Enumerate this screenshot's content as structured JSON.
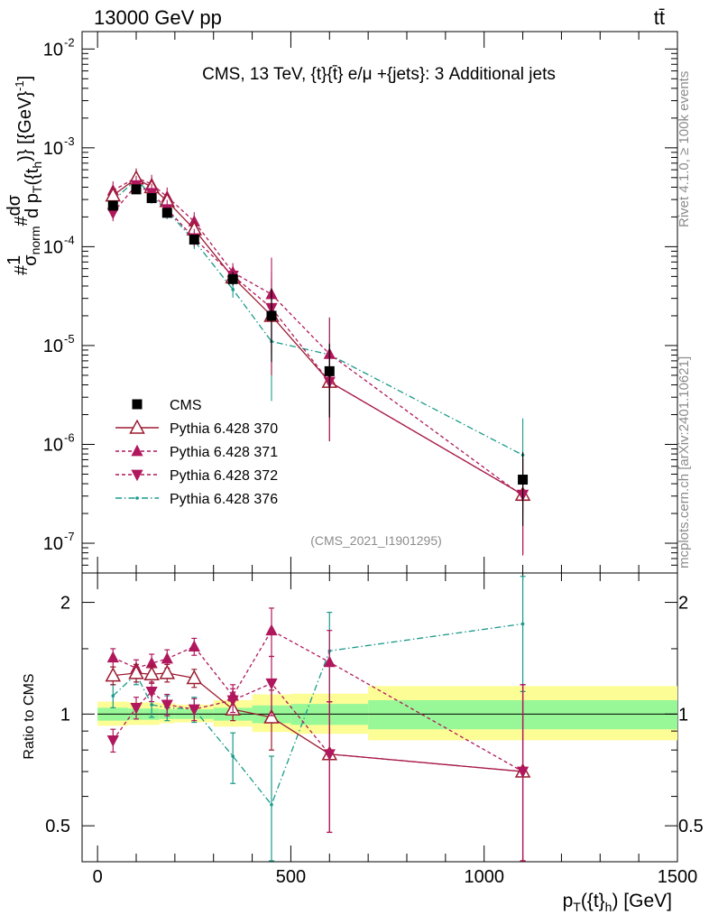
{
  "header": {
    "left": "13000 GeV pp",
    "right": "tt̄"
  },
  "side": {
    "top": "Rivet 4.1.0, ≥ 100k events",
    "bottom": "mcplots.cern.ch [arXiv:2401.10621]"
  },
  "chart_data": {
    "type": "line",
    "title": "CMS, 13 TeV, {t}{t̄} e/μ +{jets}: 3 Additional jets",
    "watermark": "(CMS_2021_I1901295)",
    "ylabel": "#1/σnorm #dσ/d pT({t}h) [(GeV)^-1]",
    "ylabel_parts": {
      "a": "#",
      "b": "1",
      "c": "σ",
      "d": "norm",
      "e": "#",
      "f": "dσ",
      "g": "d p",
      "h": "T",
      "i": "({t",
      "j": "h",
      "k": ")} [{GeV}",
      "l": "-1",
      "m": "]"
    },
    "xlabel": "pT({t}h) [GeV]",
    "xlabel_parts": {
      "a": "p",
      "b": "T",
      "c": "({t}",
      "d": "h",
      "e": ") [GeV]"
    },
    "ratio_ylabel": "Ratio to CMS",
    "xlim": [
      -40,
      1500
    ],
    "ylim": [
      5e-08,
      0.015
    ],
    "ratio_ylim": [
      0.4,
      2.4
    ],
    "x_ticks": [
      "0",
      "500",
      "1000",
      "1500"
    ],
    "y_ticks": [
      "10",
      "10",
      "10",
      "10",
      "10",
      "10"
    ],
    "y_tick_exps": [
      "-7",
      "-6",
      "-5",
      "-4",
      "-3",
      "-2"
    ],
    "ratio_ticks": [
      "0.5",
      "1",
      "2"
    ],
    "bins": [
      {
        "lo": 0,
        "hi": 80
      },
      {
        "lo": 80,
        "hi": 120
      },
      {
        "lo": 120,
        "hi": 160
      },
      {
        "lo": 160,
        "hi": 200
      },
      {
        "lo": 200,
        "hi": 300
      },
      {
        "lo": 300,
        "hi": 400
      },
      {
        "lo": 400,
        "hi": 500
      },
      {
        "lo": 500,
        "hi": 700
      },
      {
        "lo": 700,
        "hi": 1500
      }
    ],
    "band_inner": [
      [
        0.96,
        1.04
      ],
      [
        0.965,
        1.035
      ],
      [
        0.965,
        1.035
      ],
      [
        0.97,
        1.03
      ],
      [
        0.97,
        1.03
      ],
      [
        0.96,
        1.04
      ],
      [
        0.945,
        1.055
      ],
      [
        0.935,
        1.065
      ],
      [
        0.91,
        1.09
      ]
    ],
    "band_outer": [
      [
        0.93,
        1.08
      ],
      [
        0.935,
        1.075
      ],
      [
        0.935,
        1.075
      ],
      [
        0.945,
        1.07
      ],
      [
        0.95,
        1.06
      ],
      [
        0.925,
        1.09
      ],
      [
        0.895,
        1.13
      ],
      [
        0.885,
        1.135
      ],
      [
        0.85,
        1.19
      ]
    ],
    "series": [
      {
        "name": "CMS",
        "label": "CMS",
        "color": "#000000",
        "marker": "square",
        "dash": "none",
        "x": [
          40,
          100,
          140,
          180,
          250,
          350,
          450,
          600,
          1100
        ],
        "values": [
          0.00026,
          0.00038,
          0.00031,
          0.00022,
          0.000118,
          4.7e-05,
          2e-05,
          5.5e-06,
          4.4e-07
        ],
        "ratio": [
          1,
          1,
          1,
          1,
          1,
          1,
          1,
          1,
          1
        ]
      },
      {
        "name": "Pythia 6.428 370",
        "label": "Pythia 6.428 370",
        "color": "#9b1b30",
        "marker": "triangle-open",
        "dash": "none",
        "x": [
          40,
          100,
          140,
          180,
          250,
          350,
          450,
          600,
          1100
        ],
        "values": [
          0.00033,
          0.00049,
          0.0004,
          0.00029,
          0.00015,
          4.9e-05,
          2e-05,
          4.3e-06,
          3.1e-07
        ],
        "ratio": [
          1.27,
          1.29,
          1.28,
          1.29,
          1.25,
          1.03,
          0.98,
          0.78,
          0.7
        ],
        "ratio_err": [
          0.07,
          0.07,
          0.07,
          0.07,
          0.07,
          0.07,
          0.18,
          0.3,
          0.5
        ]
      },
      {
        "name": "Pythia 6.428 371",
        "label": "Pythia 6.428 371",
        "color": "#b0175c",
        "marker": "triangle-up",
        "dash": "4,3",
        "x": [
          40,
          100,
          140,
          180,
          250,
          350,
          450,
          600,
          1100
        ],
        "values": [
          0.00037,
          0.0005,
          0.00043,
          0.00032,
          0.00018,
          5.5e-05,
          3.3e-05,
          8.2e-06,
          3e-07
        ],
        "ratio": [
          1.42,
          1.33,
          1.37,
          1.41,
          1.52,
          1.12,
          1.68,
          1.38,
          0.7
        ],
        "ratio_err": [
          0.08,
          0.07,
          0.08,
          0.08,
          0.08,
          0.08,
          0.25,
          0.3,
          0.5
        ]
      },
      {
        "name": "Pythia 6.428 372",
        "label": "Pythia 6.428 372",
        "color": "#b0175c",
        "marker": "triangle-down",
        "dash": "4,3",
        "x": [
          40,
          100,
          140,
          180,
          250,
          350,
          450,
          600,
          1100
        ],
        "values": [
          0.00022,
          0.00042,
          0.00035,
          0.00024,
          0.000122,
          5.1e-05,
          2.4e-05,
          4.3e-06,
          3.1e-07
        ],
        "ratio": [
          0.85,
          1.04,
          1.15,
          1.06,
          1.03,
          1.09,
          1.21,
          0.78,
          0.7
        ],
        "ratio_err": [
          0.06,
          0.07,
          0.07,
          0.07,
          0.07,
          0.08,
          0.22,
          0.3,
          0.5
        ]
      },
      {
        "name": "Pythia 6.428 376",
        "label": "Pythia 6.428 376",
        "color": "#1a9a8a",
        "marker": "dot",
        "dash": "7,3,1.5,3",
        "x": [
          40,
          100,
          140,
          180,
          250,
          350,
          450,
          600,
          1100
        ],
        "values": [
          0.00029,
          0.00048,
          0.00033,
          0.00023,
          0.000115,
          3.7e-05,
          1.1e-05,
          8.1e-06,
          7.8e-07
        ],
        "ratio": [
          1.12,
          1.28,
          1.06,
          1.04,
          1.03,
          0.77,
          0.57,
          1.48,
          1.75
        ],
        "ratio_err": [
          0.08,
          0.08,
          0.08,
          0.08,
          0.08,
          0.12,
          0.2,
          0.4,
          0.6
        ]
      }
    ]
  }
}
